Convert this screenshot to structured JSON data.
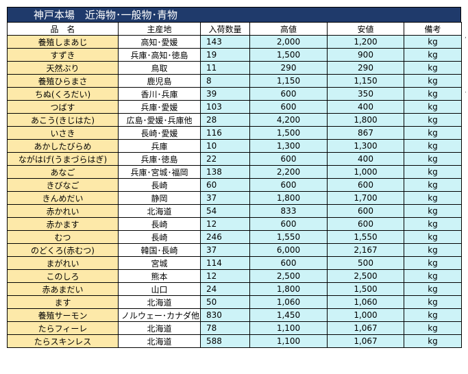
{
  "title": "神戸本場　近海物･一般物･青物",
  "headers": [
    "品　名",
    "主産地",
    "入荷数量",
    "高値",
    "安値",
    "備考"
  ],
  "rows": [
    {
      "name": "養殖しまあじ",
      "origin": "高知･愛媛",
      "qty": "143",
      "high": "2,000",
      "low": "1,200",
      "unit": "kg"
    },
    {
      "name": "すずき",
      "origin": "兵庫･高知･徳島",
      "qty": "19",
      "high": "1,500",
      "low": "900",
      "unit": "kg"
    },
    {
      "name": "天然ぶり",
      "origin": "鳥取",
      "qty": "11",
      "high": "290",
      "low": "290",
      "unit": "kg"
    },
    {
      "name": "養殖ひらまさ",
      "origin": "鹿児島",
      "qty": "8",
      "high": "1,150",
      "low": "1,150",
      "unit": "kg"
    },
    {
      "name": "ちぬ(くろだい)",
      "origin": "香川･兵庫",
      "qty": "39",
      "high": "600",
      "low": "350",
      "unit": "kg"
    },
    {
      "name": "つばす",
      "origin": "兵庫･愛媛",
      "qty": "103",
      "high": "600",
      "low": "400",
      "unit": "kg"
    },
    {
      "name": "あこう(きじはた)",
      "origin": "広島･愛媛･兵庫他",
      "qty": "28",
      "high": "4,200",
      "low": "1,800",
      "unit": "kg"
    },
    {
      "name": "いさき",
      "origin": "長崎･愛媛",
      "qty": "116",
      "high": "1,500",
      "low": "867",
      "unit": "kg"
    },
    {
      "name": "あかしたびらめ",
      "origin": "兵庫",
      "qty": "10",
      "high": "1,300",
      "low": "1,300",
      "unit": "kg"
    },
    {
      "name": "ながはげ(うまづらはぎ)",
      "origin": "兵庫･徳島",
      "qty": "22",
      "high": "600",
      "low": "400",
      "unit": "kg"
    },
    {
      "name": "あなご",
      "origin": "兵庫･宮城･福岡",
      "qty": "138",
      "high": "2,200",
      "low": "1,000",
      "unit": "kg"
    },
    {
      "name": "きびなご",
      "origin": "長崎",
      "qty": "60",
      "high": "600",
      "low": "600",
      "unit": "kg"
    },
    {
      "name": "きんめだい",
      "origin": "静岡",
      "qty": "37",
      "high": "1,800",
      "low": "1,700",
      "unit": "kg"
    },
    {
      "name": "赤かれい",
      "origin": "北海道",
      "qty": "54",
      "high": "833",
      "low": "600",
      "unit": "kg"
    },
    {
      "name": "赤かます",
      "origin": "長崎",
      "qty": "12",
      "high": "600",
      "low": "600",
      "unit": "kg"
    },
    {
      "name": "むつ",
      "origin": "長崎",
      "qty": "246",
      "high": "1,550",
      "low": "1,550",
      "unit": "kg"
    },
    {
      "name": "のどくろ(赤むつ)",
      "origin": "韓国･長崎",
      "qty": "37",
      "high": "6,000",
      "low": "2,167",
      "unit": "kg"
    },
    {
      "name": "まがれい",
      "origin": "宮城",
      "qty": "114",
      "high": "600",
      "low": "500",
      "unit": "kg"
    },
    {
      "name": "このしろ",
      "origin": "熊本",
      "qty": "12",
      "high": "2,500",
      "low": "2,500",
      "unit": "kg"
    },
    {
      "name": "赤あまだい",
      "origin": "山口",
      "qty": "24",
      "high": "1,800",
      "low": "1,500",
      "unit": "kg"
    },
    {
      "name": "ます",
      "origin": "北海道",
      "qty": "50",
      "high": "1,060",
      "low": "1,060",
      "unit": "kg"
    },
    {
      "name": "養殖サーモン",
      "origin": "ノルウェー･カナダ他",
      "qty": "830",
      "high": "1,450",
      "low": "1,000",
      "unit": "kg"
    },
    {
      "name": "たらフィーレ",
      "origin": "北海道",
      "qty": "78",
      "high": "1,100",
      "low": "1,067",
      "unit": "kg"
    },
    {
      "name": "たらスキンレス",
      "origin": "北海道",
      "qty": "588",
      "high": "1,100",
      "low": "1,067",
      "unit": "kg"
    }
  ],
  "colors": {
    "title_bg": "#1f3a6b",
    "name_bg": "#fde9a9",
    "value_bg": "#cdf3f7"
  }
}
